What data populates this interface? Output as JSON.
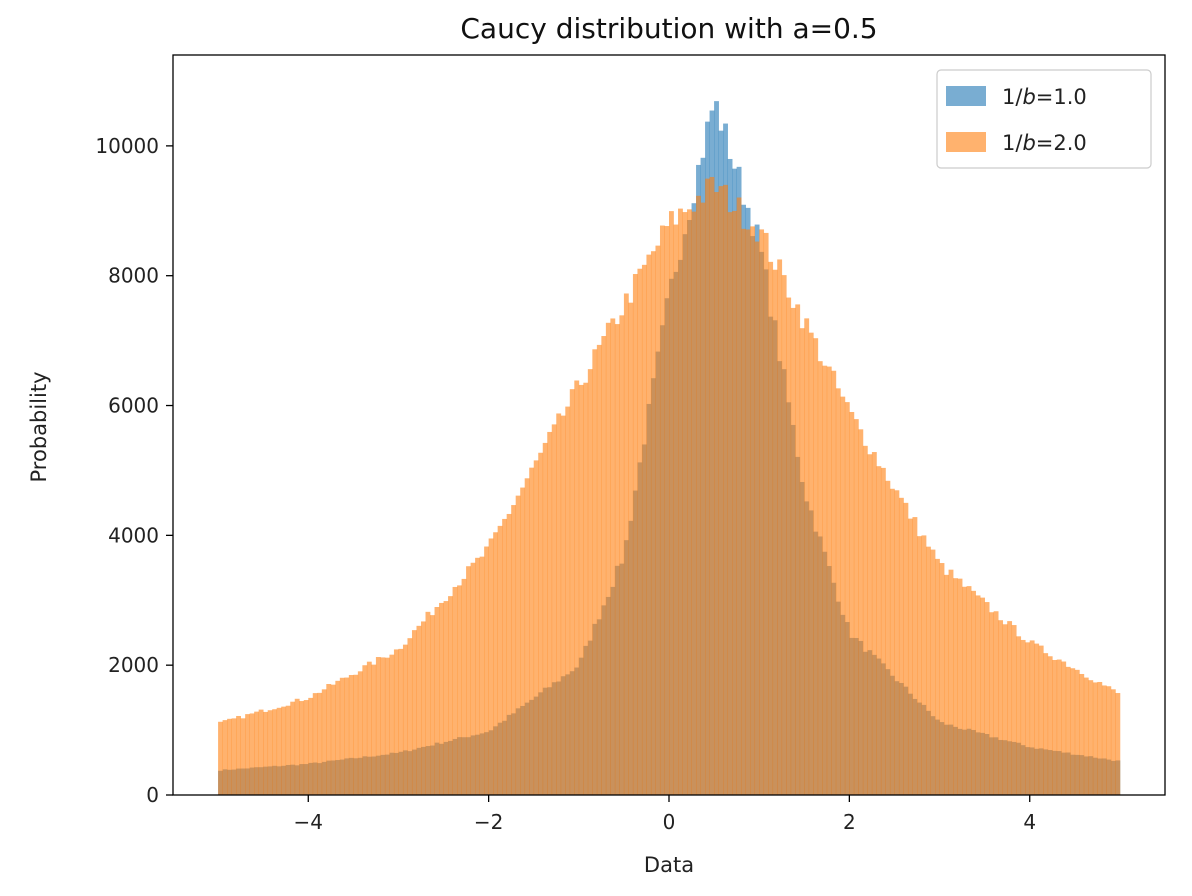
{
  "chart_data": {
    "type": "bar",
    "subtype": "histogram",
    "title": "Caucy distribution with a=0.5",
    "xlabel": "Data",
    "ylabel": "Probability",
    "xlim": [
      -5.5,
      5.5
    ],
    "ylim": [
      0,
      11400
    ],
    "x_ticks": [
      -4,
      -2,
      0,
      2,
      4
    ],
    "x_tick_labels": [
      "−4",
      "−2",
      "0",
      "2",
      "4"
    ],
    "y_ticks": [
      0,
      2000,
      4000,
      6000,
      8000,
      10000
    ],
    "y_tick_labels": [
      "0",
      "2000",
      "4000",
      "6000",
      "8000",
      "10000"
    ],
    "grid": false,
    "legend_position": "top-right",
    "bin_range": [
      -5,
      5
    ],
    "bin_count": 200,
    "series": [
      {
        "name": "1/b=1.0",
        "legend_prefix": "1/",
        "legend_var": "b",
        "legend_suffix": "=1.0",
        "color": "#1f77b4",
        "opacity": 0.6,
        "peak_x": 0.5,
        "peak_value": 10700,
        "approx_bin_values": [
          {
            "x": -5.0,
            "y": 380
          },
          {
            "x": -4.0,
            "y": 480
          },
          {
            "x": -3.0,
            "y": 650
          },
          {
            "x": -2.0,
            "y": 980
          },
          {
            "x": -1.0,
            "y": 2000
          },
          {
            "x": -0.5,
            "y": 3700
          },
          {
            "x": 0.0,
            "y": 7700
          },
          {
            "x": 0.5,
            "y": 10700
          },
          {
            "x": 1.0,
            "y": 8500
          },
          {
            "x": 1.5,
            "y": 4700
          },
          {
            "x": 2.0,
            "y": 2500
          },
          {
            "x": 3.0,
            "y": 1120
          },
          {
            "x": 4.0,
            "y": 740
          },
          {
            "x": 5.0,
            "y": 520
          }
        ]
      },
      {
        "name": "1/b=2.0",
        "legend_prefix": "1/",
        "legend_var": "b",
        "legend_suffix": "=2.0",
        "color": "#ff7f0e",
        "opacity": 0.6,
        "peak_x": 0.5,
        "peak_value": 9400,
        "approx_bin_values": [
          {
            "x": -5.0,
            "y": 1100
          },
          {
            "x": -4.0,
            "y": 1500
          },
          {
            "x": -3.0,
            "y": 2250
          },
          {
            "x": -2.0,
            "y": 3800
          },
          {
            "x": -1.0,
            "y": 6300
          },
          {
            "x": 0.0,
            "y": 8800
          },
          {
            "x": 0.5,
            "y": 9400
          },
          {
            "x": 1.0,
            "y": 8700
          },
          {
            "x": 2.0,
            "y": 5900
          },
          {
            "x": 3.0,
            "y": 3550
          },
          {
            "x": 4.0,
            "y": 2350
          },
          {
            "x": 5.0,
            "y": 1550
          }
        ]
      }
    ]
  }
}
